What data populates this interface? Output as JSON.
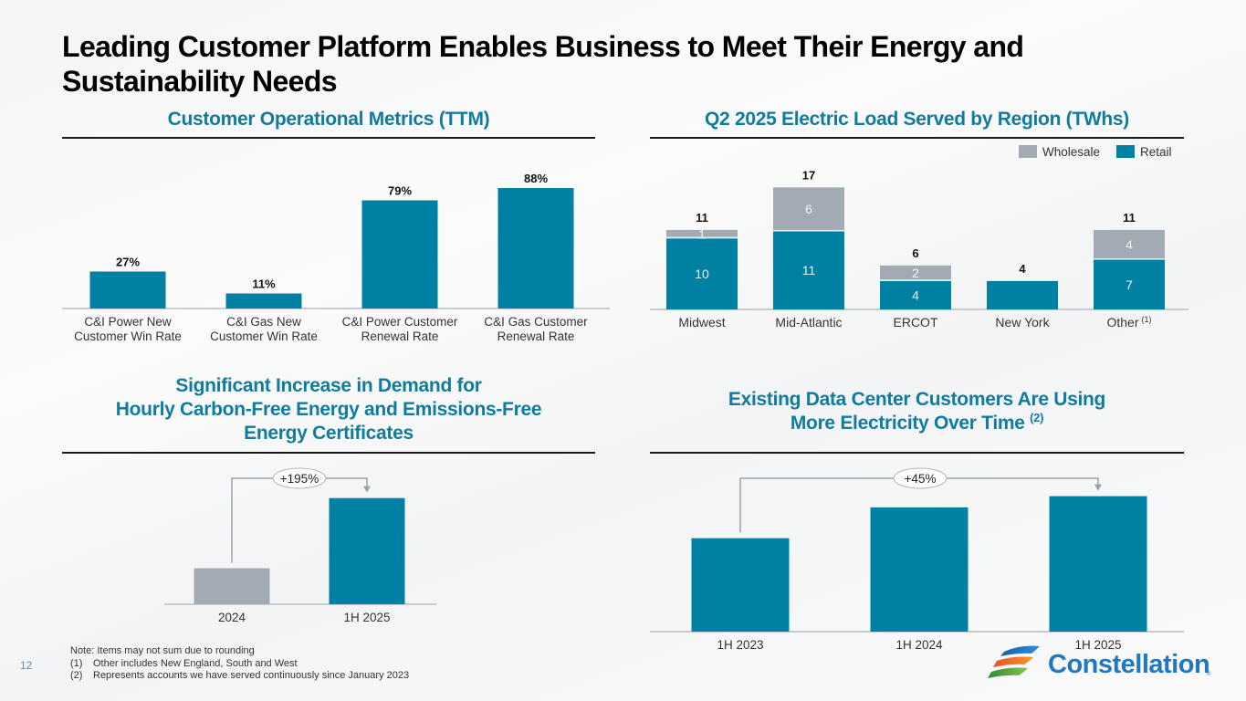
{
  "slide": {
    "title": "Leading Customer Platform Enables Business to Meet Their Energy and Sustainability Needs",
    "page_number": "12",
    "footnotes": {
      "note": "Note: Items may not sum due to rounding",
      "items": [
        {
          "marker": "(1)",
          "text": "Other includes New England, South and West"
        },
        {
          "marker": "(2)",
          "text": "Represents accounts we have served continuously since January 2023"
        }
      ]
    },
    "logo": {
      "name": "Constellation",
      "reg": "®"
    }
  },
  "colors": {
    "retail": "#0080a3",
    "wholesale": "#a2abb3",
    "title_blue": "#0f7c9f",
    "arrow_gray": "#9aa3aa"
  },
  "chart_data": [
    {
      "id": "operational-metrics",
      "type": "bar",
      "title": "Customer Operational Metrics (TTM)",
      "categories": [
        [
          "C&I Power New",
          "Customer Win Rate"
        ],
        [
          "C&I Gas New",
          "Customer Win Rate"
        ],
        [
          "C&I Power Customer",
          "Renewal Rate"
        ],
        [
          "C&I Gas Customer",
          "Renewal Rate"
        ]
      ],
      "values": [
        27,
        11,
        79,
        88
      ],
      "data_labels": [
        "27%",
        "11%",
        "79%",
        "88%"
      ],
      "ylim": [
        0,
        100
      ],
      "xlabel": "",
      "ylabel": "",
      "grid": false,
      "legend": "none"
    },
    {
      "id": "electric-load",
      "type": "bar",
      "stacked": true,
      "title": "Q2 2025 Electric Load Served by Region (TWhs)",
      "categories": [
        "Midwest",
        "Mid-Atlantic",
        "ERCOT",
        "New York",
        "Other"
      ],
      "category_footnotes": [
        "",
        "",
        "",
        "",
        "(1)"
      ],
      "series": [
        {
          "name": "Retail",
          "values": [
            10,
            11,
            4,
            4,
            7
          ]
        },
        {
          "name": "Wholesale",
          "values": [
            1,
            6,
            2,
            0,
            4
          ]
        }
      ],
      "segment_labels": {
        "Retail": [
          "10",
          "11",
          "4",
          "",
          "7"
        ],
        "Wholesale": [
          "1",
          "6",
          "2",
          "",
          "4"
        ]
      },
      "totals": [
        "11",
        "17",
        "6",
        "4",
        "11"
      ],
      "legend": {
        "position": "top-right",
        "entries": [
          "Wholesale",
          "Retail"
        ]
      },
      "ylim": [
        0,
        18
      ],
      "xlabel": "",
      "ylabel": "",
      "grid": false
    },
    {
      "id": "carbon-free-demand",
      "type": "bar",
      "title": [
        "Significant Increase in Demand for",
        "Hourly Carbon-Free Energy and Emissions-Free",
        "Energy Certificates"
      ],
      "categories": [
        "2024",
        "1H 2025"
      ],
      "values": [
        1.0,
        2.95
      ],
      "value_units": "relative (2024 = 1.0)",
      "annotation": "+195%",
      "ylim": [
        0,
        3.5
      ],
      "xlabel": "",
      "ylabel": "",
      "grid": false,
      "legend": "none"
    },
    {
      "id": "data-center-usage",
      "type": "bar",
      "title": [
        "Existing Data Center Customers Are Using",
        "More Electricity Over Time"
      ],
      "title_footnote": "(2)",
      "categories": [
        "1H 2023",
        "1H 2024",
        "1H 2025"
      ],
      "values": [
        1.0,
        1.33,
        1.45
      ],
      "value_units": "relative (1H 2023 = 1.0)",
      "annotation": "+45%",
      "ylim": [
        0,
        1.7
      ],
      "xlabel": "",
      "ylabel": "",
      "grid": false,
      "legend": "none"
    }
  ]
}
